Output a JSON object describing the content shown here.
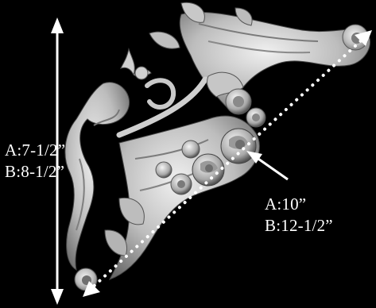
{
  "dimensions": {
    "height": {
      "option_a": "A:7-1/2”",
      "option_b": "B:8-1/2”"
    },
    "diagonal": {
      "option_a": "A:10”",
      "option_b": "B:12-1/2”"
    }
  },
  "colors": {
    "background": "#000000",
    "ornament": "#d9d9d9",
    "annotation": "#ffffff"
  }
}
